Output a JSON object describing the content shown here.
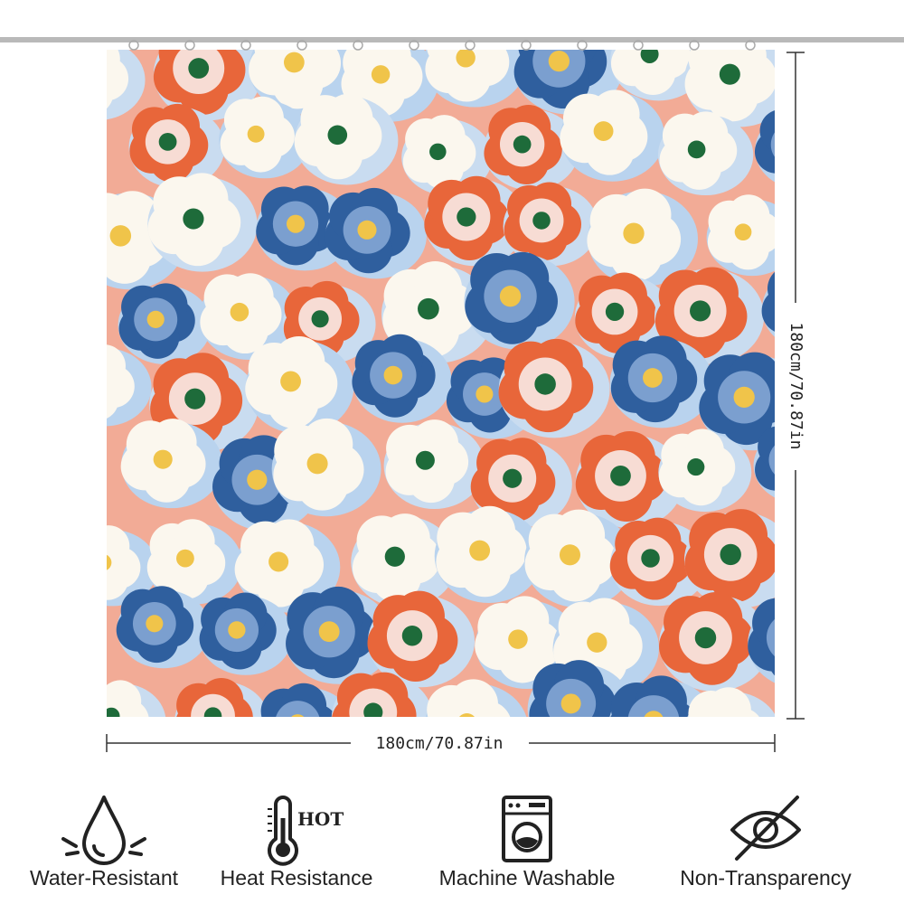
{
  "dimensions": {
    "width": "180cm/70.87in",
    "height": "180cm/70.87in"
  },
  "features": [
    {
      "label": "Water-Resistant"
    },
    {
      "label": "Heat Resistance",
      "icon_text": "HOT"
    },
    {
      "label": "Machine Washable"
    },
    {
      "label": "Non-Transparency"
    }
  ]
}
